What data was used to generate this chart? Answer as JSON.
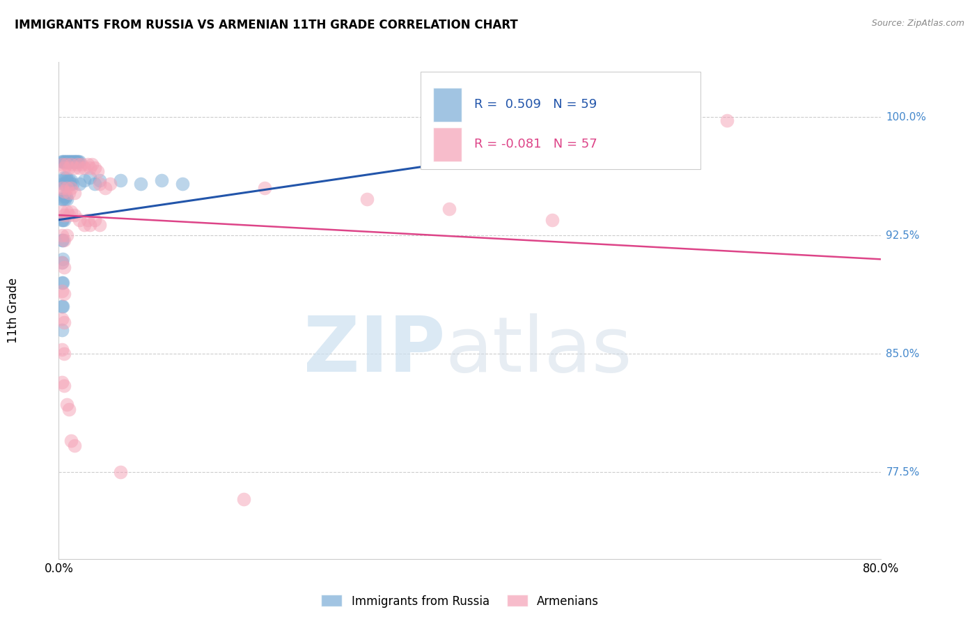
{
  "title": "IMMIGRANTS FROM RUSSIA VS ARMENIAN 11TH GRADE CORRELATION CHART",
  "source": "Source: ZipAtlas.com",
  "ylabel": "11th Grade",
  "yaxis_labels": [
    "100.0%",
    "92.5%",
    "85.0%",
    "77.5%"
  ],
  "yaxis_values": [
    1.0,
    0.925,
    0.85,
    0.775
  ],
  "xlim": [
    0.0,
    0.8
  ],
  "ylim": [
    0.72,
    1.035
  ],
  "legend_color1": "#7aacd6",
  "legend_color2": "#f4a0b5",
  "blue_color": "#7aacd6",
  "pink_color": "#f4a0b5",
  "trendline_blue": "#2255aa",
  "trendline_pink": "#dd4488",
  "blue_trendline_x": [
    0.0,
    0.42
  ],
  "blue_trendline_y": [
    0.935,
    0.975
  ],
  "pink_trendline_x": [
    0.0,
    0.8
  ],
  "pink_trendline_y": [
    0.938,
    0.91
  ],
  "blue_points": [
    [
      0.003,
      0.972
    ],
    [
      0.004,
      0.972
    ],
    [
      0.005,
      0.972
    ],
    [
      0.006,
      0.972
    ],
    [
      0.007,
      0.972
    ],
    [
      0.008,
      0.972
    ],
    [
      0.009,
      0.972
    ],
    [
      0.01,
      0.972
    ],
    [
      0.011,
      0.972
    ],
    [
      0.012,
      0.972
    ],
    [
      0.013,
      0.972
    ],
    [
      0.014,
      0.972
    ],
    [
      0.015,
      0.972
    ],
    [
      0.016,
      0.972
    ],
    [
      0.017,
      0.972
    ],
    [
      0.018,
      0.972
    ],
    [
      0.019,
      0.972
    ],
    [
      0.02,
      0.972
    ],
    [
      0.003,
      0.96
    ],
    [
      0.004,
      0.958
    ],
    [
      0.005,
      0.962
    ],
    [
      0.006,
      0.958
    ],
    [
      0.007,
      0.962
    ],
    [
      0.008,
      0.96
    ],
    [
      0.009,
      0.958
    ],
    [
      0.01,
      0.96
    ],
    [
      0.011,
      0.958
    ],
    [
      0.012,
      0.96
    ],
    [
      0.013,
      0.958
    ],
    [
      0.003,
      0.948
    ],
    [
      0.004,
      0.948
    ],
    [
      0.005,
      0.95
    ],
    [
      0.006,
      0.948
    ],
    [
      0.007,
      0.95
    ],
    [
      0.008,
      0.948
    ],
    [
      0.003,
      0.935
    ],
    [
      0.004,
      0.935
    ],
    [
      0.005,
      0.935
    ],
    [
      0.003,
      0.922
    ],
    [
      0.004,
      0.922
    ],
    [
      0.003,
      0.908
    ],
    [
      0.004,
      0.91
    ],
    [
      0.003,
      0.895
    ],
    [
      0.004,
      0.895
    ],
    [
      0.003,
      0.88
    ],
    [
      0.004,
      0.88
    ],
    [
      0.003,
      0.865
    ],
    [
      0.02,
      0.958
    ],
    [
      0.025,
      0.96
    ],
    [
      0.03,
      0.962
    ],
    [
      0.035,
      0.958
    ],
    [
      0.04,
      0.96
    ],
    [
      0.06,
      0.96
    ],
    [
      0.08,
      0.958
    ],
    [
      0.1,
      0.96
    ],
    [
      0.12,
      0.958
    ],
    [
      0.42,
      0.972
    ]
  ],
  "pink_points": [
    [
      0.003,
      0.97
    ],
    [
      0.005,
      0.968
    ],
    [
      0.007,
      0.97
    ],
    [
      0.01,
      0.968
    ],
    [
      0.012,
      0.97
    ],
    [
      0.015,
      0.968
    ],
    [
      0.018,
      0.97
    ],
    [
      0.02,
      0.968
    ],
    [
      0.022,
      0.97
    ],
    [
      0.025,
      0.968
    ],
    [
      0.028,
      0.97
    ],
    [
      0.03,
      0.968
    ],
    [
      0.032,
      0.97
    ],
    [
      0.035,
      0.968
    ],
    [
      0.038,
      0.966
    ],
    [
      0.04,
      0.958
    ],
    [
      0.045,
      0.955
    ],
    [
      0.05,
      0.958
    ],
    [
      0.003,
      0.955
    ],
    [
      0.005,
      0.953
    ],
    [
      0.008,
      0.955
    ],
    [
      0.01,
      0.952
    ],
    [
      0.012,
      0.955
    ],
    [
      0.015,
      0.952
    ],
    [
      0.003,
      0.94
    ],
    [
      0.005,
      0.938
    ],
    [
      0.008,
      0.94
    ],
    [
      0.01,
      0.938
    ],
    [
      0.012,
      0.94
    ],
    [
      0.015,
      0.938
    ],
    [
      0.02,
      0.935
    ],
    [
      0.025,
      0.932
    ],
    [
      0.028,
      0.935
    ],
    [
      0.03,
      0.932
    ],
    [
      0.035,
      0.935
    ],
    [
      0.04,
      0.932
    ],
    [
      0.003,
      0.925
    ],
    [
      0.005,
      0.922
    ],
    [
      0.008,
      0.925
    ],
    [
      0.003,
      0.908
    ],
    [
      0.005,
      0.905
    ],
    [
      0.003,
      0.89
    ],
    [
      0.005,
      0.888
    ],
    [
      0.003,
      0.872
    ],
    [
      0.005,
      0.87
    ],
    [
      0.003,
      0.853
    ],
    [
      0.005,
      0.85
    ],
    [
      0.003,
      0.832
    ],
    [
      0.005,
      0.83
    ],
    [
      0.008,
      0.818
    ],
    [
      0.01,
      0.815
    ],
    [
      0.012,
      0.795
    ],
    [
      0.015,
      0.792
    ],
    [
      0.06,
      0.775
    ],
    [
      0.18,
      0.758
    ],
    [
      0.65,
      0.998
    ],
    [
      0.2,
      0.955
    ],
    [
      0.3,
      0.948
    ],
    [
      0.38,
      0.942
    ],
    [
      0.48,
      0.935
    ]
  ]
}
